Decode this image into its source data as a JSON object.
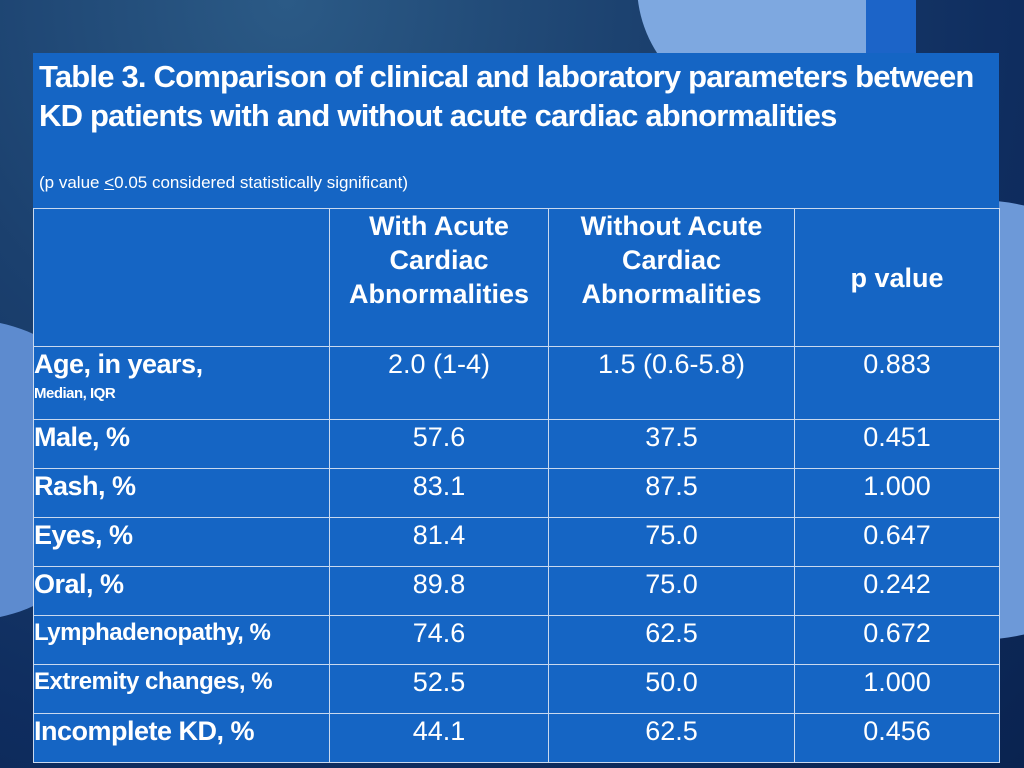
{
  "title": "Table 3. Comparison of clinical and laboratory parameters between KD patients with and without acute cardiac abnormalities",
  "subtitle_prefix": "(p value ",
  "subtitle_underlined": "<",
  "subtitle_suffix": "0.05 considered statistically significant)",
  "columns": {
    "blank": "",
    "with": "With Acute Cardiac Abnormalities",
    "without": "Without Acute Cardiac Abnormalities",
    "pvalue": "p value"
  },
  "rows": [
    {
      "label": "Age, in years,",
      "sublabel": "Median, IQR",
      "with": "2.0 (1-4)",
      "without": "1.5 (0.6-5.8)",
      "p": "0.883"
    },
    {
      "label": "Male, %",
      "with": "57.6",
      "without": "37.5",
      "p": "0.451"
    },
    {
      "label": "Rash, %",
      "with": "83.1",
      "without": "87.5",
      "p": "1.000"
    },
    {
      "label": "Eyes, %",
      "with": "81.4",
      "without": "75.0",
      "p": "0.647"
    },
    {
      "label": "Oral, %",
      "with": "89.8",
      "without": "75.0",
      "p": "0.242"
    },
    {
      "label": "Lymphadenopathy, %",
      "with": "74.6",
      "without": "62.5",
      "p": "0.672"
    },
    {
      "label": "Extremity changes, %",
      "with": "52.5",
      "without": "50.0",
      "p": "1.000"
    },
    {
      "label": "Incomplete KD, %",
      "with": "44.1",
      "without": "62.5",
      "p": "0.456"
    }
  ],
  "colors": {
    "panel": "#1565c4",
    "background": "#0b2a5a",
    "text": "#ffffff"
  }
}
